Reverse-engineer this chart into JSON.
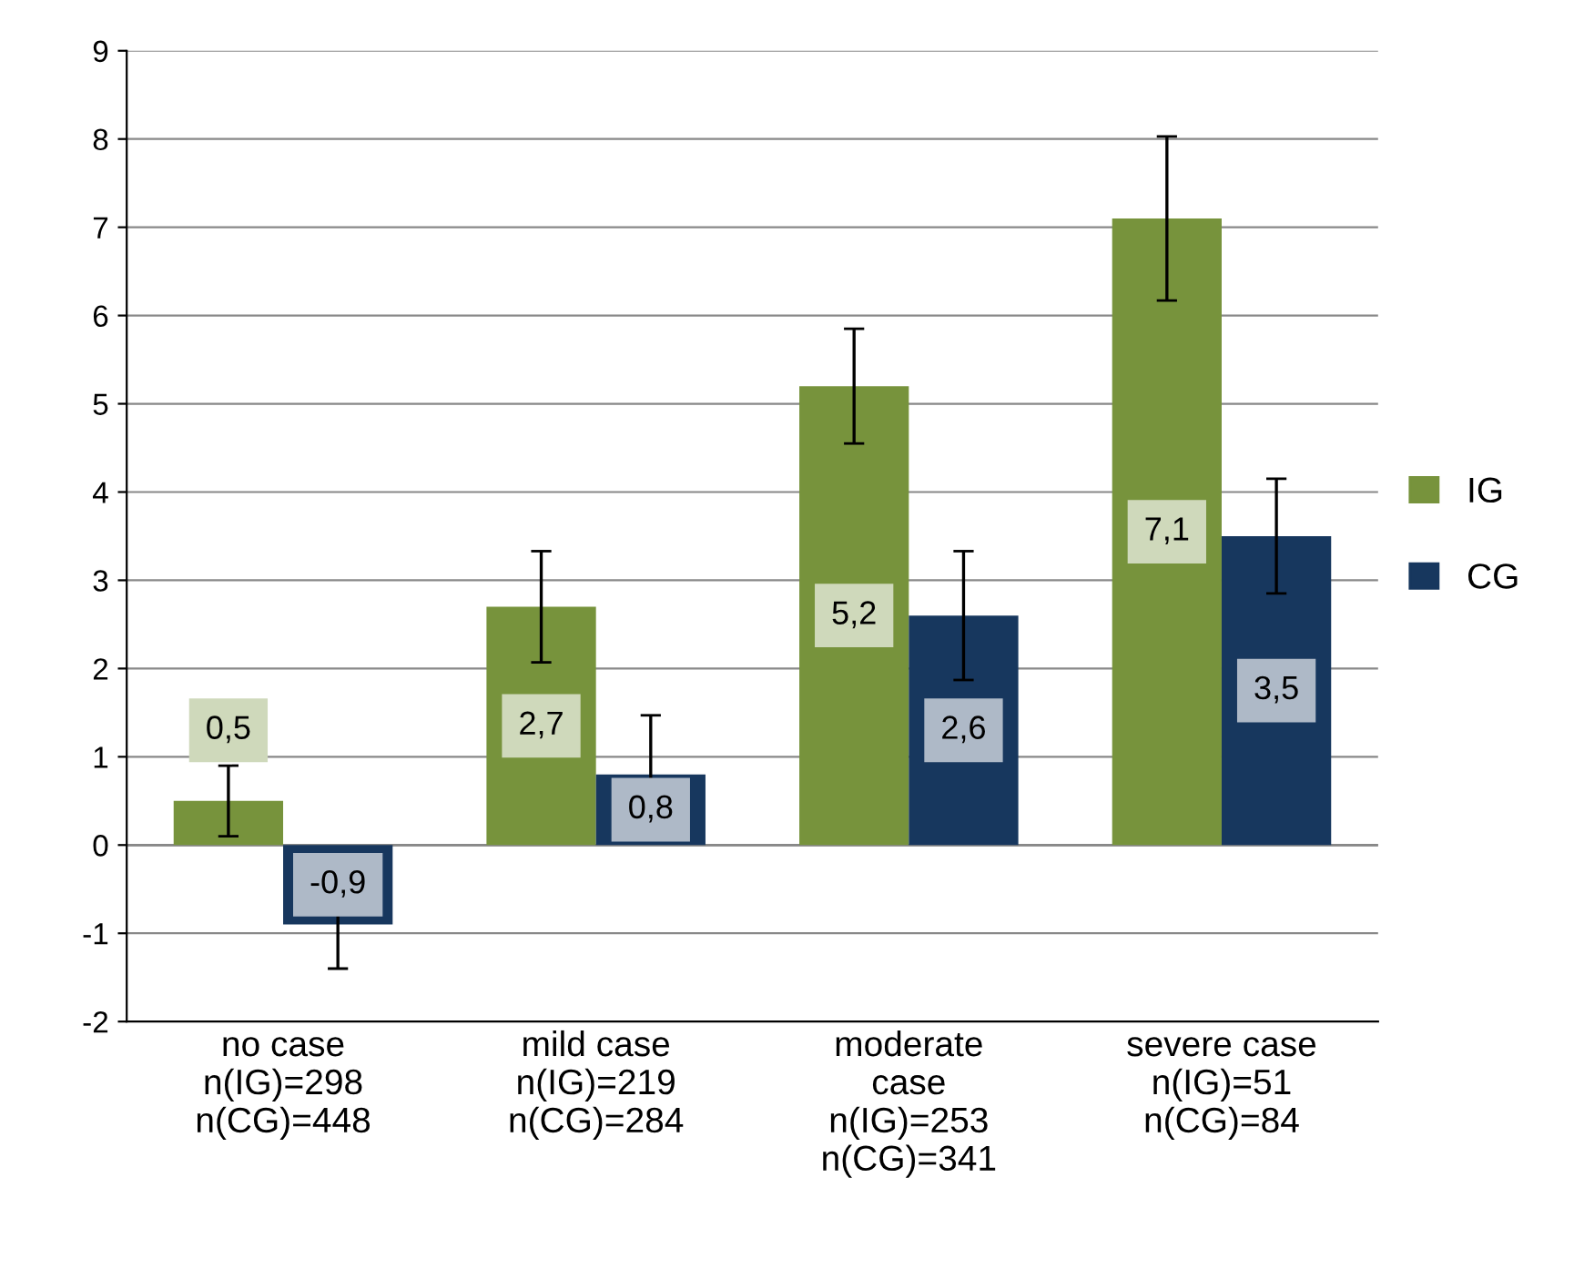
{
  "chart_data": {
    "type": "bar",
    "categories": [
      "no case\nn(IG)=298\nn(CG)=448",
      "mild case\nn(IG)=219\nn(CG)=284",
      "moderate\ncase\nn(IG)=253\nn(CG)=341",
      "severe case\nn(IG)=51\nn(CG)=84"
    ],
    "series": [
      {
        "name": "IG",
        "color": "#77933c",
        "values": [
          0.5,
          2.7,
          5.2,
          7.1
        ],
        "errors": [
          0.4,
          0.63,
          0.65,
          0.93
        ],
        "value_labels": [
          "0,5",
          "2,7",
          "5,2",
          "7,1"
        ]
      },
      {
        "name": "CG",
        "color": "#17375e",
        "values": [
          -0.9,
          0.8,
          2.6,
          3.5
        ],
        "errors": [
          0.5,
          0.67,
          0.73,
          0.65
        ],
        "value_labels": [
          "-0,9",
          "0,8",
          "2,6",
          "3,5"
        ]
      }
    ],
    "ylim": [
      -2,
      9
    ],
    "yticks": [
      -2,
      -1,
      0,
      1,
      2,
      3,
      4,
      5,
      6,
      7,
      8,
      9
    ],
    "grid": "y",
    "legend": "right"
  }
}
